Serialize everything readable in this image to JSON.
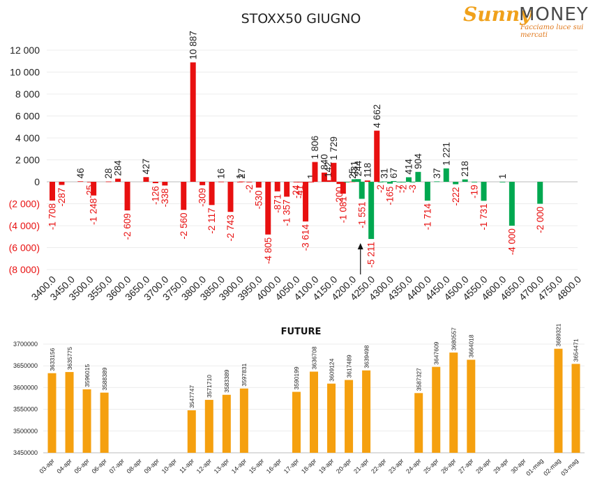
{
  "logo": {
    "brand_script": "Sunny",
    "brand_word": "MONEY",
    "tagline": "Facciamo luce sui mercati"
  },
  "chart_data": [
    {
      "type": "bar",
      "title": "STOXX50 GIUGNO",
      "ylim": [
        -8000,
        12000
      ],
      "yticks": [
        "(8 000)",
        "(6 000)",
        "(4 000)",
        "(2 000)",
        "0",
        "2 000",
        "4 000",
        "6 000",
        "8 000",
        "10 000",
        "12 000"
      ],
      "ytick_values": [
        -8000,
        -6000,
        -4000,
        -2000,
        0,
        2000,
        4000,
        6000,
        8000,
        10000,
        12000
      ],
      "xticks": [
        "3400.0",
        "3450.0",
        "3500.0",
        "3550.0",
        "3600.0",
        "3650.0",
        "3700.0",
        "3750.0",
        "3800.0",
        "3850.0",
        "3900.0",
        "3950.0",
        "4000.0",
        "4050.0",
        "4100.0",
        "4150.0",
        "4200.0",
        "4250.0",
        "4300.0",
        "4350.0",
        "4400.0",
        "4450.0",
        "4500.0",
        "4550.0",
        "4600.0",
        "4650.0",
        "4700.0",
        "4750.0",
        "4800.0"
      ],
      "xlim": [
        3400,
        4800
      ],
      "colors": {
        "call": "#e81010",
        "put": "#00a850"
      },
      "series": [
        {
          "color": "call",
          "points": [
            {
              "x": 3400,
              "v": -1708,
              "label": "-1 708"
            },
            {
              "x": 3425,
              "v": -287,
              "label": "-287"
            },
            {
              "x": 3475,
              "v": 46,
              "label": "46"
            },
            {
              "x": 3500,
              "v": -25,
              "label": "-25"
            },
            {
              "x": 3510,
              "v": -1248,
              "label": "-1 248"
            },
            {
              "x": 3550,
              "v": 28,
              "label": "28"
            },
            {
              "x": 3575,
              "v": 284,
              "label": "284"
            },
            {
              "x": 3600,
              "v": -2609,
              "label": "-2 609"
            },
            {
              "x": 3650,
              "v": 427,
              "label": "427"
            },
            {
              "x": 3675,
              "v": -126,
              "label": "-126"
            },
            {
              "x": 3700,
              "v": -338,
              "label": "-338"
            },
            {
              "x": 3750,
              "v": -2560,
              "label": "-2 560"
            },
            {
              "x": 3775,
              "v": 10887,
              "label": "10 887"
            },
            {
              "x": 3800,
              "v": -309,
              "label": "-309"
            },
            {
              "x": 3825,
              "v": -2117,
              "label": "-2 117"
            },
            {
              "x": 3850,
              "v": 16,
              "label": "16"
            },
            {
              "x": 3875,
              "v": -2743,
              "label": "-2 743"
            },
            {
              "x": 3900,
              "v": 1,
              "label": "1"
            },
            {
              "x": 3905,
              "v": 27,
              "label": "27"
            },
            {
              "x": 3925,
              "v": -2,
              "label": "-2"
            },
            {
              "x": 3950,
              "v": -530,
              "label": "-530"
            },
            {
              "x": 3975,
              "v": -4805,
              "label": "-4 805"
            },
            {
              "x": 4000,
              "v": -871,
              "label": "-871"
            },
            {
              "x": 4025,
              "v": -1357,
              "label": "-1 357"
            },
            {
              "x": 4050,
              "v": -24,
              "label": "-24"
            },
            {
              "x": 4060,
              "v": -41,
              "label": "-41"
            },
            {
              "x": 4075,
              "v": -3614,
              "label": "-3 614"
            },
            {
              "x": 4090,
              "v": 1,
              "label": "1"
            },
            {
              "x": 4100,
              "v": 1806,
              "label": "1 806"
            },
            {
              "x": 4125,
              "v": 840,
              "label": "840"
            },
            {
              "x": 4135,
              "v": 142,
              "label": "142"
            },
            {
              "x": 4150,
              "v": 1729,
              "label": "1 729"
            },
            {
              "x": 4165,
              "v": -200,
              "label": "-200"
            },
            {
              "x": 4175,
              "v": -1081,
              "label": "-1 081"
            },
            {
              "x": 4200,
              "v": 25,
              "label": "25"
            },
            {
              "x": 4240,
              "v": 118,
              "label": "118"
            },
            {
              "x": 4265,
              "v": 4662,
              "label": "4 662"
            }
          ]
        },
        {
          "color": "put",
          "points": [
            {
              "x": 4185,
              "v": -31,
              "label": ""
            },
            {
              "x": 4205,
              "v": 231,
              "label": "231"
            },
            {
              "x": 4215,
              "v": 244,
              "label": "244"
            },
            {
              "x": 4225,
              "v": -1551,
              "label": "-1 551"
            },
            {
              "x": 4250,
              "v": -5211,
              "label": "-5 211"
            },
            {
              "x": 4275,
              "v": -2,
              "label": "-2"
            },
            {
              "x": 4285,
              "v": 31,
              "label": "31"
            },
            {
              "x": 4300,
              "v": -165,
              "label": "-165"
            },
            {
              "x": 4310,
              "v": 67,
              "label": "67"
            },
            {
              "x": 4325,
              "v": -7,
              "label": "-7"
            },
            {
              "x": 4335,
              "v": -2,
              "label": "-2"
            },
            {
              "x": 4350,
              "v": 414,
              "label": "414"
            },
            {
              "x": 4360,
              "v": -3,
              "label": "-3"
            },
            {
              "x": 4375,
              "v": 904,
              "label": "904"
            },
            {
              "x": 4400,
              "v": -1714,
              "label": "-1 714"
            },
            {
              "x": 4425,
              "v": 37,
              "label": "37"
            },
            {
              "x": 4450,
              "v": 1221,
              "label": "1 221"
            },
            {
              "x": 4475,
              "v": -222,
              "label": "-222"
            },
            {
              "x": 4500,
              "v": 218,
              "label": "218"
            },
            {
              "x": 4525,
              "v": -19,
              "label": "-19"
            },
            {
              "x": 4550,
              "v": -1731,
              "label": "-1 731"
            },
            {
              "x": 4600,
              "v": 1,
              "label": "1"
            },
            {
              "x": 4625,
              "v": -4000,
              "label": "-4 000"
            },
            {
              "x": 4700,
              "v": -2000,
              "label": "-2 000"
            }
          ]
        }
      ],
      "marker_arrow_x": 4225
    },
    {
      "type": "bar",
      "title": "FUTURE",
      "color": "#f5a00f",
      "ylim": [
        3450000,
        3700000
      ],
      "yticks": [
        "3450000",
        "3500000",
        "3550000",
        "3600000",
        "3650000",
        "3700000"
      ],
      "ytick_values": [
        3450000,
        3500000,
        3550000,
        3600000,
        3650000,
        3700000
      ],
      "categories": [
        "03-apr",
        "04-apr",
        "05-apr",
        "06-apr",
        "07-apr",
        "08-apr",
        "09-apr",
        "10-apr",
        "11-apr",
        "12-apr",
        "13-apr",
        "14-apr",
        "15-apr",
        "16-apr",
        "17-apr",
        "18-apr",
        "19-apr",
        "20-apr",
        "21-apr",
        "22-apr",
        "23-apr",
        "24-apr",
        "25-apr",
        "26-apr",
        "27-apr",
        "28-apr",
        "29-apr",
        "30-apr",
        "01-mag",
        "02-mag",
        "03-mag"
      ],
      "values": [
        3633156,
        3635775,
        3596015,
        3588389,
        null,
        null,
        null,
        null,
        3547747,
        3571710,
        3583389,
        3597831,
        null,
        null,
        3590199,
        3636708,
        3609124,
        3617489,
        3639498,
        null,
        null,
        3587327,
        3647609,
        3680557,
        3664018,
        null,
        null,
        null,
        null,
        3689321,
        3654471
      ],
      "labels": [
        "3633156",
        "3635775",
        "3596015",
        "3588389",
        "",
        "",
        "",
        "",
        "3547747",
        "3571710",
        "3583389",
        "3597831",
        "",
        "",
        "3590199",
        "3636708",
        "3609124",
        "3617489",
        "3639498",
        "",
        "",
        "3587327",
        "3647609",
        "3680557",
        "3664018",
        "",
        "",
        "",
        "",
        "3689321",
        "3654471"
      ]
    }
  ]
}
